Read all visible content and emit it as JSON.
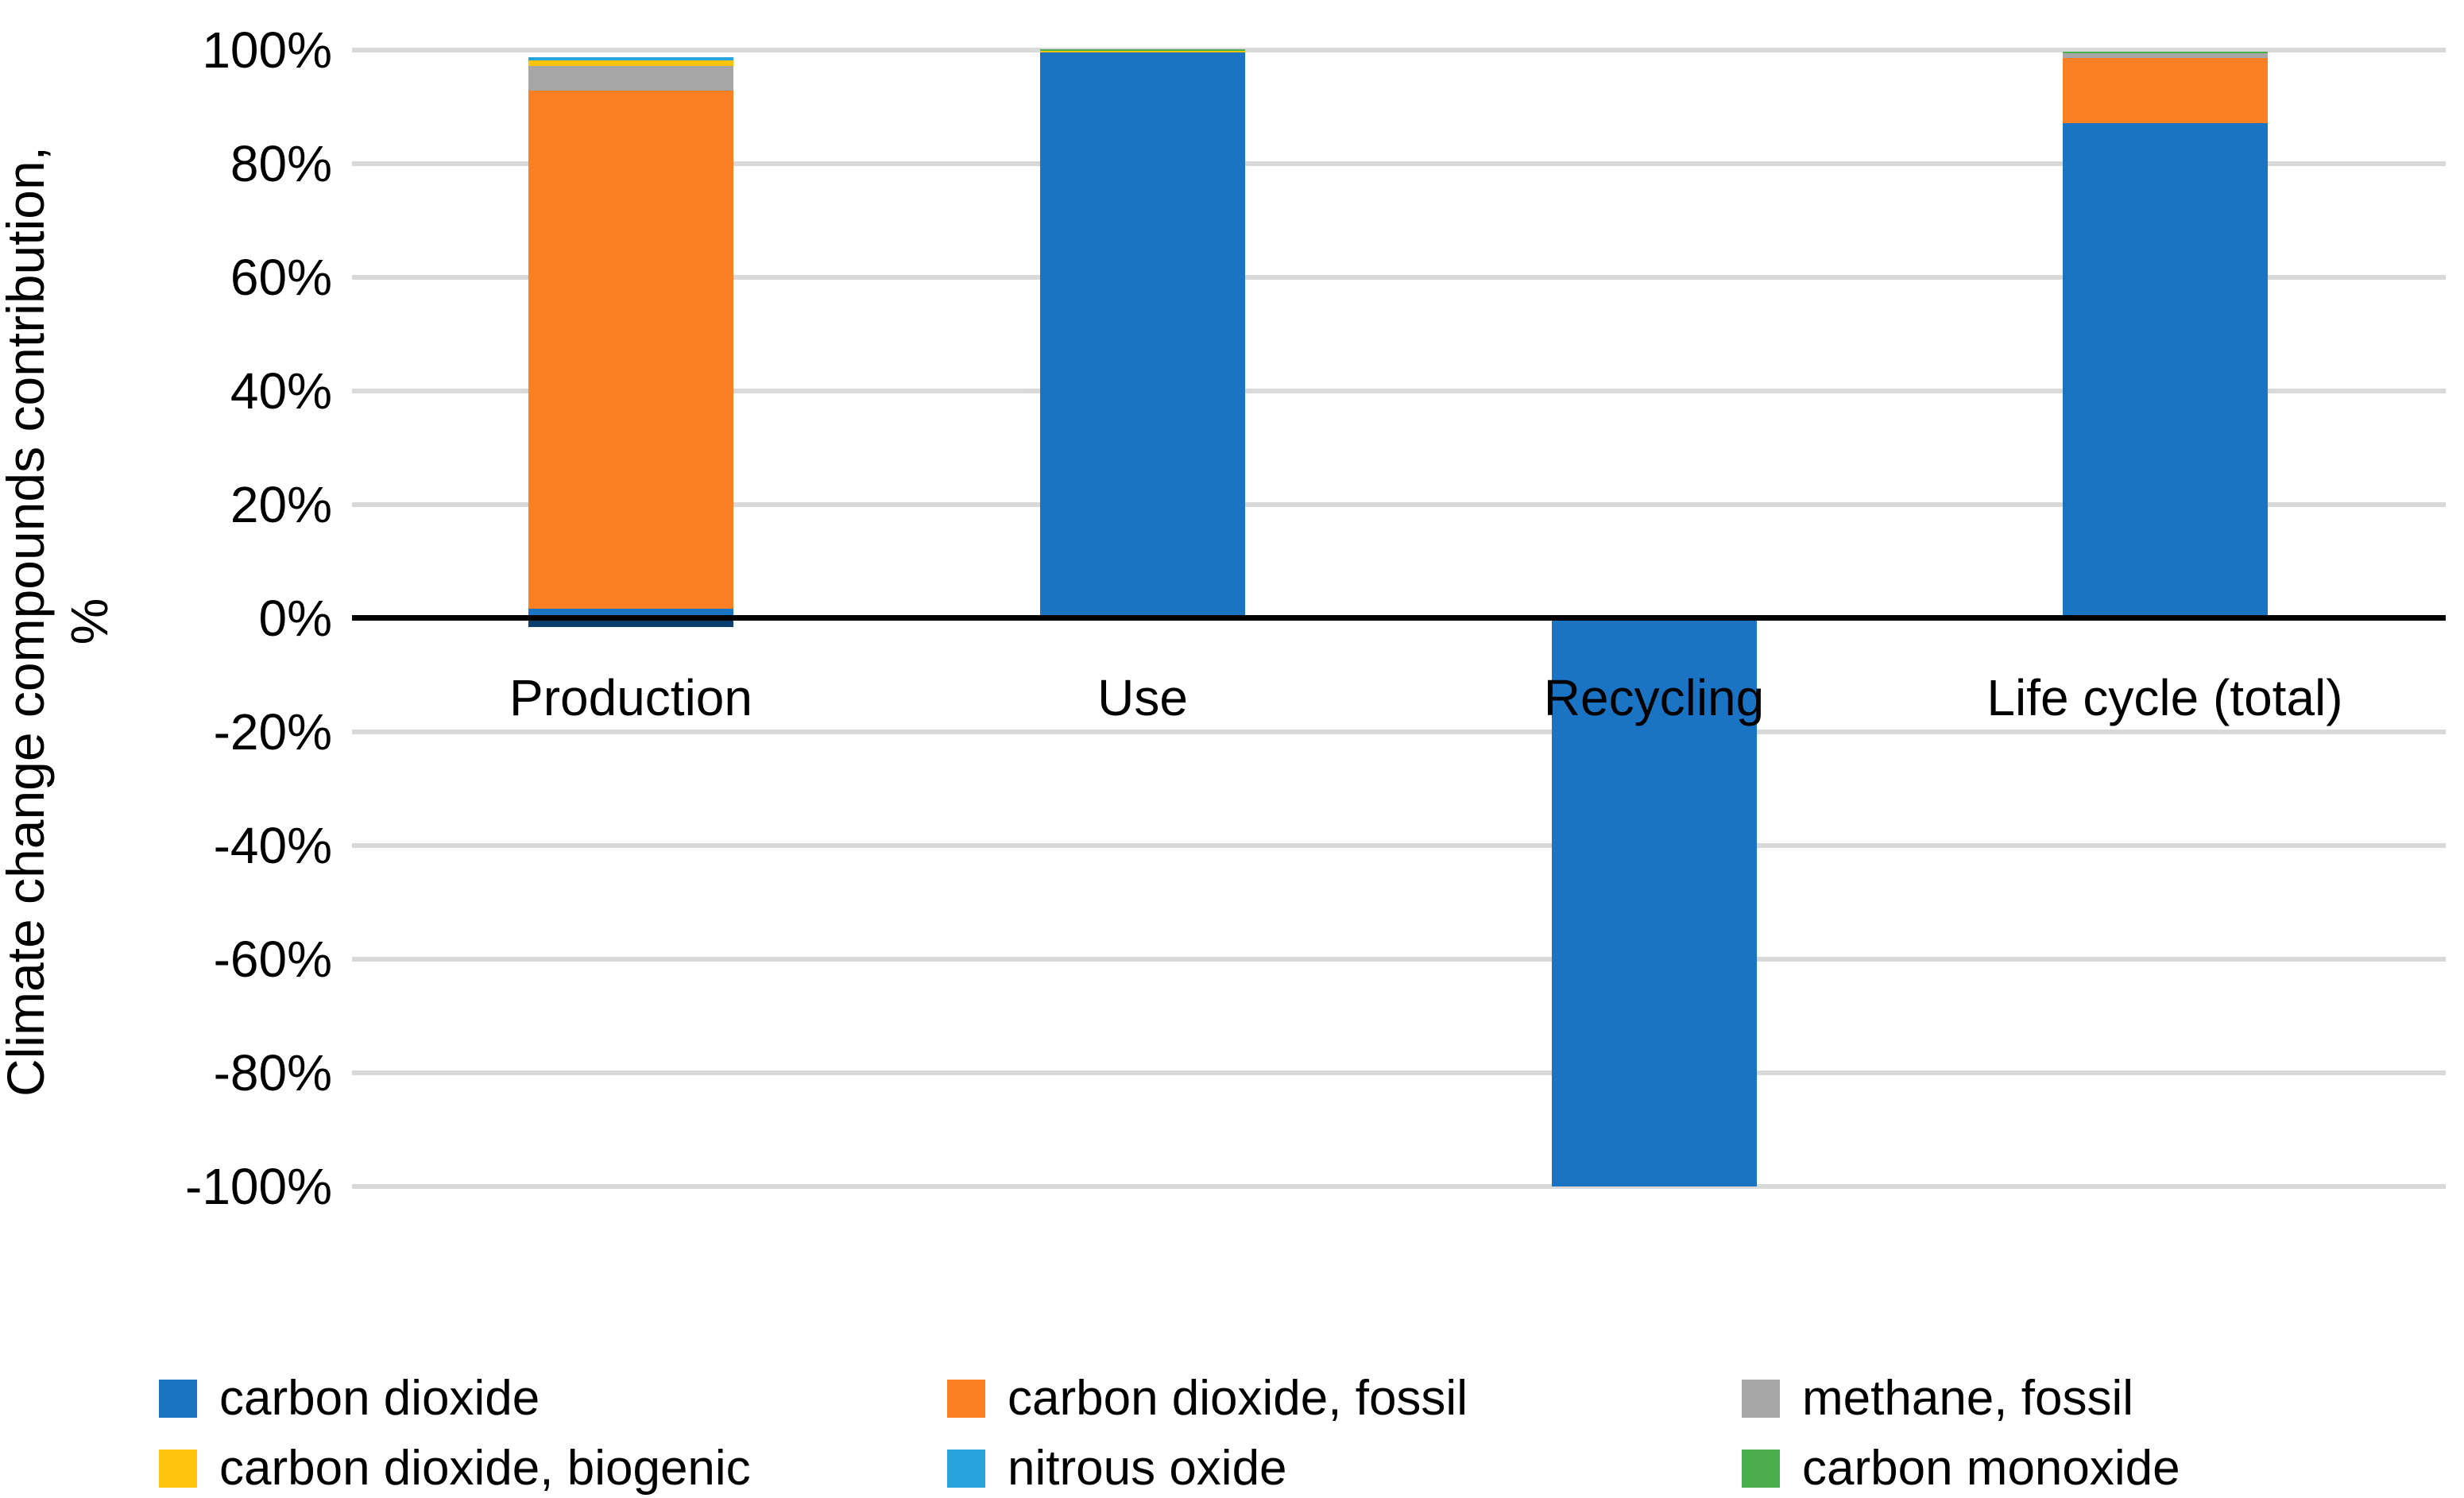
{
  "chart_data": {
    "type": "bar",
    "stacked": true,
    "orientation": "vertical",
    "background": "#ffffff",
    "grid": true,
    "gridline_color": "#D9D9D9",
    "axis_line_color": "#000000",
    "ylabel_line1": "Climate change compounds contribution,",
    "ylabel_line2": "%",
    "ylim": [
      -100,
      100
    ],
    "ytick_step": 20,
    "yticks": [
      "100%",
      "80%",
      "60%",
      "40%",
      "20%",
      "0%",
      "-20%",
      "-40%",
      "-60%",
      "-80%",
      "-100%"
    ],
    "categories": [
      "Production",
      "Use",
      "Recycling",
      "Life cycle (total)"
    ],
    "legend_position": "bottom",
    "legend": [
      {
        "name": "carbon dioxide",
        "color": "#1B73C4"
      },
      {
        "name": "carbon dioxide, fossil",
        "color": "#FA8023"
      },
      {
        "name": "methane, fossil",
        "color": "#A6A6A6"
      },
      {
        "name": "carbon dioxide, biogenic",
        "color": "#FFC30B"
      },
      {
        "name": "nitrous oxide",
        "color": "#29A3DC"
      },
      {
        "name": "carbon monoxide",
        "color": "#4BAE4F"
      }
    ],
    "bars": [
      {
        "category": "Production",
        "segments": [
          {
            "series": "carbon dioxide",
            "value": 1.6
          },
          {
            "series": "carbon dioxide, fossil",
            "value": 91.2
          },
          {
            "series": "methane, fossil",
            "value": 4.4
          },
          {
            "series": "carbon dioxide, biogenic",
            "value": 0.9
          },
          {
            "series": "nitrous oxide",
            "value": 0.6
          },
          {
            "series": "carbon dioxide",
            "value": -1.6,
            "color": "#0A3E6E"
          }
        ]
      },
      {
        "category": "Use",
        "segments": [
          {
            "series": "carbon dioxide",
            "value": 99.5
          },
          {
            "series": "carbon dioxide, biogenic",
            "value": 0.3
          },
          {
            "series": "carbon monoxide",
            "value": 0.3
          }
        ]
      },
      {
        "category": "Recycling",
        "segments": [
          {
            "series": "carbon dioxide",
            "value": -100
          }
        ]
      },
      {
        "category": "Life cycle (total)",
        "segments": [
          {
            "series": "carbon dioxide",
            "value": 87.0
          },
          {
            "series": "carbon dioxide, fossil",
            "value": 11.6
          },
          {
            "series": "methane, fossil",
            "value": 0.8
          },
          {
            "series": "carbon monoxide",
            "value": 0.3
          }
        ]
      }
    ]
  }
}
